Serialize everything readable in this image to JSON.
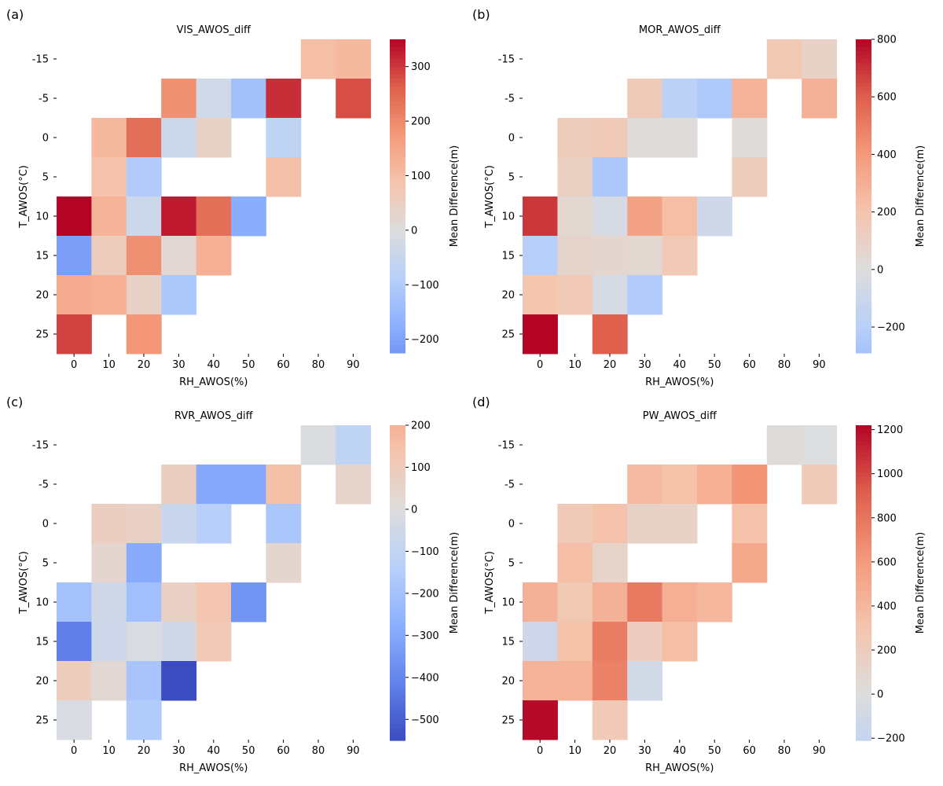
{
  "chart_data": [
    {
      "type": "heatmap",
      "panel_label": "(a)",
      "title": "VIS_AWOS_diff",
      "xlabel": "RH_AWOS(%)",
      "ylabel": "T_AWOS(°C)",
      "x_categories": [
        "0",
        "10",
        "20",
        "30",
        "40",
        "50",
        "60",
        "80",
        "90"
      ],
      "y_categories": [
        "-15",
        "-5",
        "0",
        "5",
        "10",
        "15",
        "20",
        "25"
      ],
      "values": [
        [
          null,
          null,
          null,
          null,
          null,
          null,
          null,
          100,
          110
        ],
        [
          null,
          null,
          null,
          190,
          -30,
          -130,
          310,
          null,
          280
        ],
        [
          null,
          110,
          240,
          -40,
          40,
          null,
          -70,
          null,
          null
        ],
        [
          null,
          90,
          -100,
          null,
          null,
          null,
          95,
          null,
          null
        ],
        [
          350,
          120,
          -40,
          330,
          240,
          -180,
          null,
          null,
          null
        ],
        [
          -210,
          60,
          190,
          20,
          130,
          null,
          null,
          null,
          null
        ],
        [
          140,
          130,
          40,
          -110,
          null,
          null,
          null,
          null,
          null
        ],
        [
          290,
          null,
          180,
          null,
          null,
          null,
          null,
          null,
          null
        ]
      ],
      "colorbar": {
        "label": "Mean Difference(m)",
        "vmin": -225,
        "vmax": 350,
        "ticks": [
          -200,
          -100,
          0,
          100,
          200,
          300
        ],
        "tick_labels": [
          "−200",
          "−100",
          "0",
          "100",
          "200",
          "300"
        ]
      }
    },
    {
      "type": "heatmap",
      "panel_label": "(b)",
      "title": "MOR_AWOS_diff",
      "xlabel": "RH_AWOS(%)",
      "ylabel": "T_AWOS(°C)",
      "x_categories": [
        "0",
        "10",
        "20",
        "30",
        "40",
        "50",
        "60",
        "80",
        "90"
      ],
      "y_categories": [
        "-15",
        "-5",
        "0",
        "5",
        "10",
        "15",
        "20",
        "25"
      ],
      "values": [
        [
          null,
          null,
          null,
          null,
          null,
          null,
          null,
          170,
          90
        ],
        [
          null,
          null,
          null,
          150,
          -180,
          -240,
          280,
          null,
          290
        ],
        [
          null,
          140,
          160,
          20,
          20,
          null,
          20,
          null,
          null
        ],
        [
          null,
          110,
          -250,
          null,
          null,
          null,
          140,
          null,
          null
        ],
        [
          690,
          50,
          -40,
          360,
          230,
          -80,
          null,
          null,
          null
        ],
        [
          -200,
          70,
          60,
          50,
          160,
          null,
          null,
          null,
          null
        ],
        [
          190,
          160,
          -40,
          -230,
          null,
          null,
          null,
          null,
          null
        ],
        [
          800,
          null,
          600,
          null,
          null,
          null,
          null,
          null,
          null
        ]
      ],
      "colorbar": {
        "label": "Mean Difference(m)",
        "vmin": -290,
        "vmax": 800,
        "ticks": [
          -200,
          0,
          200,
          400,
          600,
          800
        ],
        "tick_labels": [
          "−200",
          "0",
          "200",
          "400",
          "600",
          "800"
        ]
      }
    },
    {
      "type": "heatmap",
      "panel_label": "(c)",
      "title": "RVR_AWOS_diff",
      "xlabel": "RH_AWOS(%)",
      "ylabel": "T_AWOS(°C)",
      "x_categories": [
        "0",
        "10",
        "20",
        "30",
        "40",
        "50",
        "60",
        "80",
        "90"
      ],
      "y_categories": [
        "-15",
        "-5",
        "0",
        "5",
        "10",
        "15",
        "20",
        "25"
      ],
      "values": [
        [
          null,
          null,
          null,
          null,
          null,
          null,
          null,
          -10,
          -110
        ],
        [
          null,
          null,
          null,
          80,
          -300,
          -300,
          150,
          null,
          50
        ],
        [
          null,
          80,
          70,
          -70,
          -140,
          null,
          -180,
          null,
          null
        ],
        [
          null,
          40,
          -290,
          null,
          null,
          null,
          40,
          null,
          null
        ],
        [
          -200,
          -50,
          -210,
          70,
          130,
          -360,
          null,
          null,
          null
        ],
        [
          -420,
          -60,
          -20,
          -50,
          110,
          null,
          null,
          null,
          null
        ],
        [
          90,
          30,
          -190,
          -550,
          null,
          null,
          null,
          null,
          null
        ],
        [
          -20,
          null,
          -160,
          null,
          null,
          null,
          null,
          null,
          null
        ]
      ],
      "colorbar": {
        "label": "Mean Difference(m)",
        "vmin": -550,
        "vmax": 200,
        "ticks": [
          -500,
          -400,
          -300,
          -200,
          -100,
          0,
          100,
          200
        ],
        "tick_labels": [
          "−500",
          "−400",
          "−300",
          "−200",
          "−100",
          "0",
          "100",
          "200"
        ]
      }
    },
    {
      "type": "heatmap",
      "panel_label": "(d)",
      "title": "PW_AWOS_diff",
      "xlabel": "RH_AWOS(%)",
      "ylabel": "T_AWOS(°C)",
      "x_categories": [
        "0",
        "10",
        "20",
        "30",
        "40",
        "50",
        "60",
        "80",
        "90"
      ],
      "y_categories": [
        "-15",
        "-5",
        "0",
        "5",
        "10",
        "15",
        "20",
        "25"
      ],
      "values": [
        [
          null,
          null,
          null,
          null,
          null,
          null,
          null,
          30,
          -10
        ],
        [
          null,
          null,
          null,
          370,
          330,
          460,
          640,
          null,
          230
        ],
        [
          null,
          230,
          320,
          140,
          140,
          null,
          320,
          null,
          null
        ],
        [
          null,
          340,
          120,
          null,
          null,
          null,
          500,
          null,
          null
        ],
        [
          440,
          260,
          440,
          780,
          460,
          400,
          null,
          null,
          null
        ],
        [
          -130,
          330,
          760,
          190,
          350,
          null,
          null,
          null,
          null
        ],
        [
          420,
          420,
          740,
          -100,
          null,
          null,
          null,
          null,
          null
        ],
        [
          1200,
          null,
          240,
          null,
          null,
          null,
          null,
          null,
          null
        ]
      ],
      "colorbar": {
        "label": "Mean Difference(m)",
        "vmin": -210,
        "vmax": 1220,
        "ticks": [
          -200,
          0,
          200,
          400,
          600,
          800,
          1000,
          1200
        ],
        "tick_labels": [
          "−200",
          "0",
          "200",
          "400",
          "600",
          "800",
          "1000",
          "1200"
        ]
      }
    }
  ]
}
